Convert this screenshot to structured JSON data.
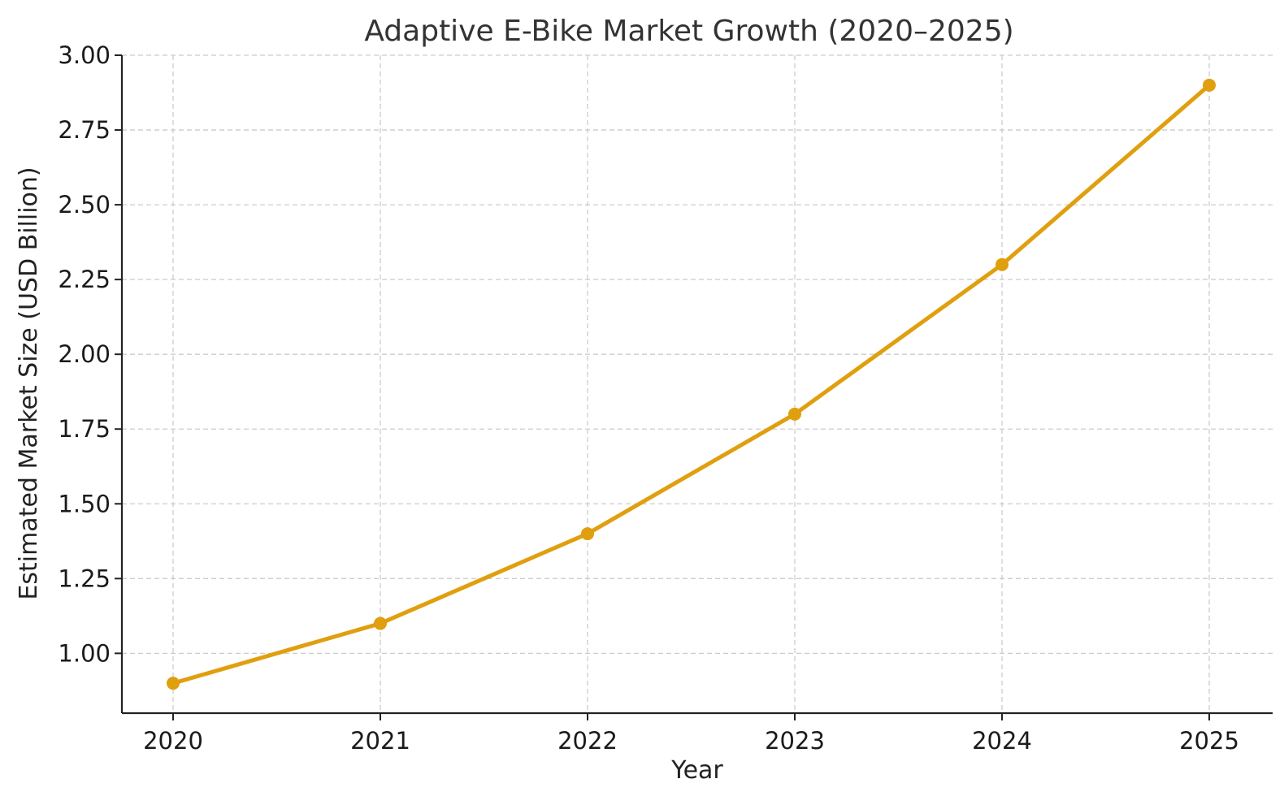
{
  "chart_data": {
    "type": "line",
    "title": "Adaptive E-Bike Market Growth (2020–2025)",
    "xlabel": "Year",
    "ylabel": "Estimated Market Size (USD Billion)",
    "x": [
      "2020",
      "2021",
      "2022",
      "2023",
      "2024",
      "2025"
    ],
    "series": [
      {
        "values": [
          0.9,
          1.1,
          1.4,
          1.8,
          2.3,
          2.9
        ],
        "color": "#E09F0E"
      }
    ],
    "yticks": [
      "1.00",
      "1.25",
      "1.50",
      "1.75",
      "2.00",
      "2.25",
      "2.50",
      "2.75",
      "3.00"
    ],
    "ylim": [
      0.8,
      3.0
    ],
    "grid": true,
    "marker": "circle"
  }
}
